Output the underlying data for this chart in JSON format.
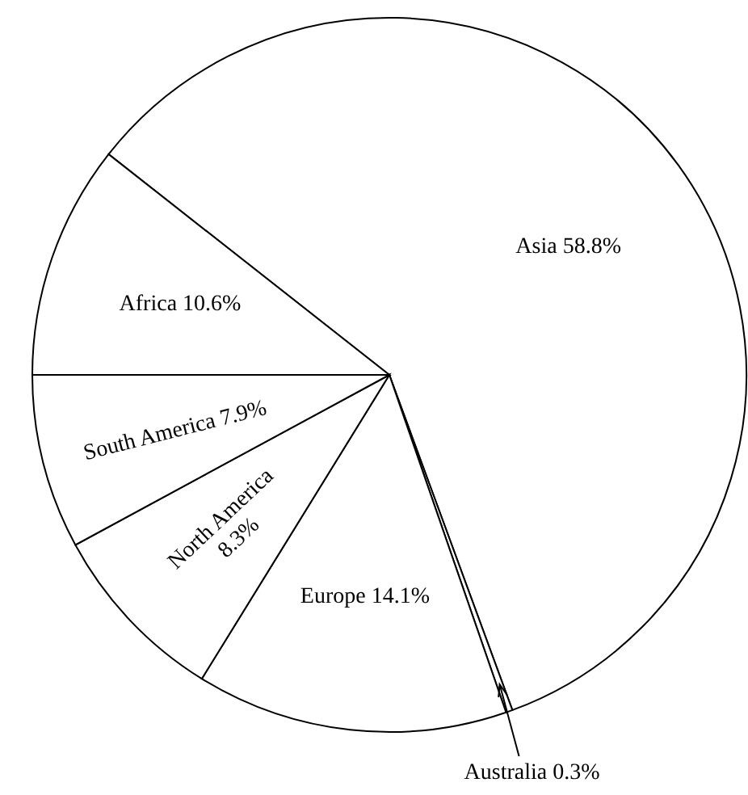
{
  "chart_data": {
    "type": "pie",
    "categories": [
      "Asia",
      "Australia",
      "Europe",
      "North America",
      "South America",
      "Africa"
    ],
    "values": [
      58.8,
      0.3,
      14.1,
      8.3,
      7.9,
      10.6
    ],
    "value_labels": [
      "58.8%",
      "0.3%",
      "14.1%",
      "8.3%",
      "7.9%",
      "10.6%"
    ],
    "colors": [
      "#ffffff",
      "#ffffff",
      "#ffffff",
      "#ffffff",
      "#ffffff",
      "#ffffff"
    ]
  }
}
